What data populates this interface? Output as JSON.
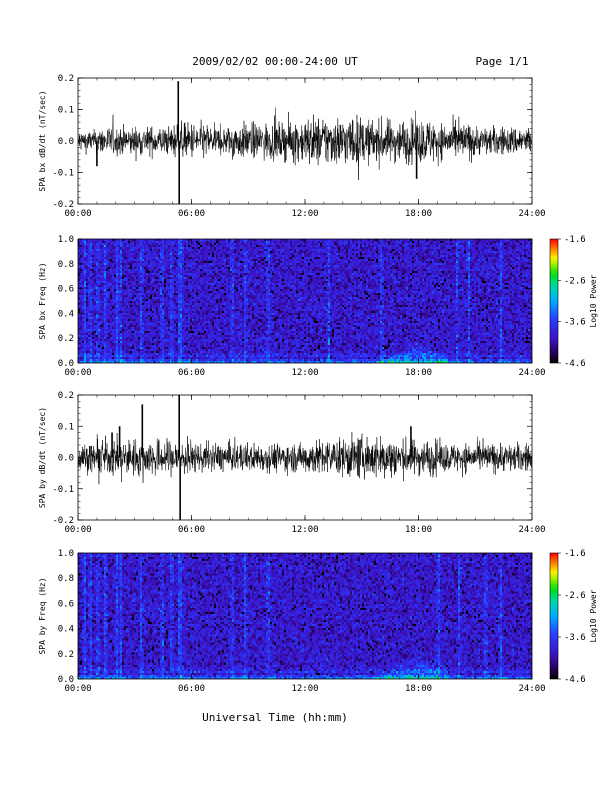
{
  "header": {
    "title": "2009/02/02  00:00-24:00 UT",
    "page": "Page 1/1"
  },
  "footer": {
    "xlabel": "Universal Time (hh:mm)"
  },
  "chart_data": [
    {
      "type": "line",
      "ylabel": "SPA bx dB/dt (nT/sec)",
      "xlim": [
        "00:00",
        "24:00"
      ],
      "ylim": [
        -0.2,
        0.2
      ],
      "x_ticks": [
        "00:00",
        "06:00",
        "12:00",
        "18:00",
        "24:00"
      ],
      "y_ticks": [
        "-0.2",
        "-0.1",
        "0.0",
        "0.1",
        "0.2"
      ],
      "features": {
        "noise_envelope_by_hour": [
          0.03,
          0.04,
          0.04,
          0.04,
          0.04,
          0.05,
          0.05,
          0.04,
          0.05,
          0.05,
          0.05,
          0.06,
          0.07,
          0.07,
          0.07,
          0.06,
          0.06,
          0.06,
          0.06,
          0.05,
          0.05,
          0.04,
          0.04,
          0.04
        ],
        "spikes": [
          {
            "time_h": 5.3,
            "value": 0.19
          },
          {
            "time_h": 5.35,
            "value": -0.2
          },
          {
            "time_h": 1.0,
            "value": -0.08
          },
          {
            "time_h": 17.9,
            "value": -0.12
          }
        ]
      }
    },
    {
      "type": "heatmap",
      "ylabel": "SPA bx Freq (Hz)",
      "xlim": [
        "00:00",
        "24:00"
      ],
      "ylim": [
        0.0,
        1.0
      ],
      "x_ticks": [
        "00:00",
        "06:00",
        "12:00",
        "18:00",
        "24:00"
      ],
      "y_ticks": [
        "0.0",
        "0.2",
        "0.4",
        "0.6",
        "0.8",
        "1.0"
      ],
      "colorbar": {
        "label": "Log10 Power",
        "ticks": [
          "-1.6",
          "-2.6",
          "-3.6",
          "-4.6"
        ],
        "range": [
          -4.6,
          -1.6
        ]
      },
      "features": {
        "vertical_streaks_h": [
          0.3,
          0.6,
          1.0,
          1.4,
          2.0,
          2.2,
          3.3,
          4.4,
          4.9,
          5.3,
          5.4,
          8.1,
          8.8,
          10.0,
          13.2,
          16.0,
          20.0,
          20.6,
          22.3
        ],
        "low_freq_enhancement": {
          "start_h": 15.0,
          "end_h": 19.5,
          "peak_h": 18.0,
          "max_freq": 0.2
        }
      }
    },
    {
      "type": "line",
      "ylabel": "SPA by dB/dt (nT/sec)",
      "xlim": [
        "00:00",
        "24:00"
      ],
      "ylim": [
        -0.2,
        0.2
      ],
      "x_ticks": [
        "00:00",
        "06:00",
        "12:00",
        "18:00",
        "24:00"
      ],
      "y_ticks": [
        "-0.2",
        "-0.1",
        "0.0",
        "0.1",
        "0.2"
      ],
      "features": {
        "noise_envelope_by_hour": [
          0.04,
          0.05,
          0.05,
          0.05,
          0.05,
          0.05,
          0.04,
          0.04,
          0.04,
          0.04,
          0.04,
          0.04,
          0.05,
          0.05,
          0.06,
          0.06,
          0.06,
          0.05,
          0.05,
          0.04,
          0.04,
          0.04,
          0.04,
          0.04
        ],
        "spikes": [
          {
            "time_h": 3.4,
            "value": 0.17
          },
          {
            "time_h": 2.2,
            "value": 0.1
          },
          {
            "time_h": 1.8,
            "value": 0.08
          },
          {
            "time_h": 5.35,
            "value": 0.2
          },
          {
            "time_h": 5.4,
            "value": -0.2
          },
          {
            "time_h": 17.6,
            "value": 0.1
          }
        ]
      }
    },
    {
      "type": "heatmap",
      "ylabel": "SPA by Freq (Hz)",
      "xlim": [
        "00:00",
        "24:00"
      ],
      "ylim": [
        0.0,
        1.0
      ],
      "x_ticks": [
        "00:00",
        "06:00",
        "12:00",
        "18:00",
        "24:00"
      ],
      "y_ticks": [
        "0.0",
        "0.2",
        "0.4",
        "0.6",
        "0.8",
        "1.0"
      ],
      "colorbar": {
        "label": "Log10 Power",
        "ticks": [
          "-1.6",
          "-2.6",
          "-3.6",
          "-4.6"
        ],
        "range": [
          -4.6,
          -1.6
        ]
      },
      "features": {
        "vertical_streaks_h": [
          0.3,
          0.6,
          1.0,
          1.4,
          2.0,
          2.2,
          3.3,
          4.4,
          4.9,
          5.3,
          5.4,
          8.1,
          8.8,
          10.0,
          19.0,
          20.1,
          21.5,
          22.3
        ],
        "low_freq_enhancement": {
          "start_h": 15.0,
          "end_h": 19.5,
          "peak_h": 18.0,
          "max_freq": 0.25
        }
      }
    }
  ]
}
